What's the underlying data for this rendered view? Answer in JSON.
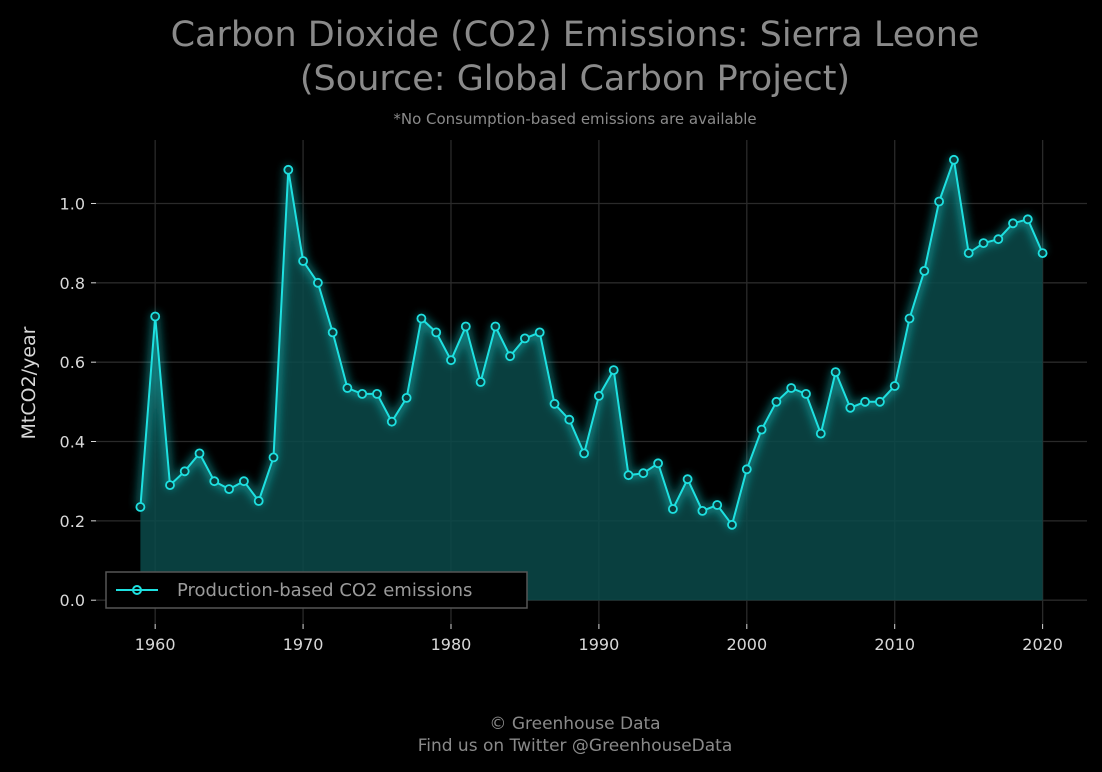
{
  "chart_data": {
    "type": "line",
    "title_line1": "Carbon Dioxide (CO2) Emissions: Sierra Leone",
    "title_line2": "(Source: Global Carbon Project)",
    "subtitle": "*No Consumption-based emissions are available",
    "xlabel": "",
    "ylabel": "MtCO2/year",
    "xlim": [
      1956,
      2023
    ],
    "ylim": [
      -0.06,
      1.16
    ],
    "x_ticks": [
      1960,
      1970,
      1980,
      1990,
      2000,
      2010,
      2020
    ],
    "y_ticks": [
      0.0,
      0.2,
      0.4,
      0.6,
      0.8,
      1.0
    ],
    "grid": true,
    "legend_position": "bottom-left",
    "series": [
      {
        "name": "Production-based CO2 emissions",
        "color": "#1ee0e0",
        "fill_color": "#0a4a4a",
        "x": [
          1959,
          1960,
          1961,
          1962,
          1963,
          1964,
          1965,
          1966,
          1967,
          1968,
          1969,
          1970,
          1971,
          1972,
          1973,
          1974,
          1975,
          1976,
          1977,
          1978,
          1979,
          1980,
          1981,
          1982,
          1983,
          1984,
          1985,
          1986,
          1987,
          1988,
          1989,
          1990,
          1991,
          1992,
          1993,
          1994,
          1995,
          1996,
          1997,
          1998,
          1999,
          2000,
          2001,
          2002,
          2003,
          2004,
          2005,
          2006,
          2007,
          2008,
          2009,
          2010,
          2011,
          2012,
          2013,
          2014,
          2015,
          2016,
          2017,
          2018,
          2019,
          2020
        ],
        "values": [
          0.235,
          0.715,
          0.29,
          0.325,
          0.37,
          0.3,
          0.28,
          0.3,
          0.25,
          0.36,
          1.085,
          0.855,
          0.8,
          0.675,
          0.535,
          0.52,
          0.52,
          0.45,
          0.51,
          0.71,
          0.675,
          0.605,
          0.69,
          0.55,
          0.69,
          0.615,
          0.66,
          0.675,
          0.495,
          0.455,
          0.37,
          0.515,
          0.58,
          0.315,
          0.32,
          0.345,
          0.23,
          0.305,
          0.225,
          0.24,
          0.19,
          0.33,
          0.43,
          0.5,
          0.535,
          0.52,
          0.42,
          0.575,
          0.485,
          0.5,
          0.5,
          0.54,
          0.71,
          0.83,
          1.005,
          1.11,
          0.875,
          0.9,
          0.91,
          0.95,
          0.96,
          0.875
        ]
      }
    ]
  },
  "footer": {
    "line1": "© Greenhouse Data",
    "line2": "Find us on Twitter @GreenhouseData"
  }
}
